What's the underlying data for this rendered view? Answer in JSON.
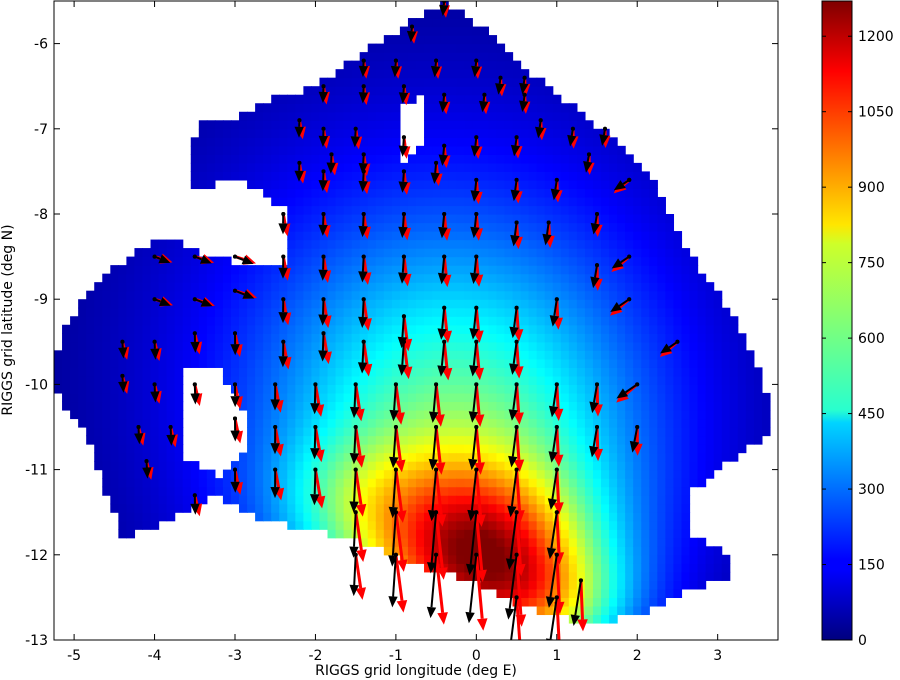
{
  "chart_data": {
    "type": "heatmap",
    "title": "",
    "xlabel": "RIGGS grid longitude (deg E)",
    "ylabel": "RIGGS grid latitude (deg N)",
    "xlim": [
      -5.25,
      3.75
    ],
    "ylim": [
      -13,
      -5.5
    ],
    "xticks": [
      -5,
      -4,
      -3,
      -2,
      -1,
      0,
      1,
      2,
      3
    ],
    "yticks": [
      -13,
      -12,
      -11,
      -10,
      -9,
      -8,
      -7,
      -6
    ],
    "colorbar": {
      "range": [
        0,
        1270
      ],
      "ticks": [
        0,
        150,
        300,
        450,
        600,
        750,
        900,
        1050,
        1200
      ],
      "colormap": "jet"
    },
    "field_note": "",
    "vector_series": [
      {
        "color": "#ff0000"
      },
      {
        "color": "#000000"
      }
    ],
    "vectors": [
      {
        "x": -0.4,
        "y": -5.5,
        "v": 1
      },
      {
        "x": -0.8,
        "y": -5.8,
        "v": 1
      },
      {
        "x": -1.4,
        "y": -6.2,
        "v": 1
      },
      {
        "x": -1.0,
        "y": -6.2,
        "v": 1
      },
      {
        "x": -0.5,
        "y": -6.2,
        "v": 1
      },
      {
        "x": 0.0,
        "y": -6.2,
        "v": 1
      },
      {
        "x": 0.3,
        "y": -6.4,
        "v": 1
      },
      {
        "x": 0.6,
        "y": -6.4,
        "v": 1
      },
      {
        "x": -1.9,
        "y": -6.5,
        "v": 1
      },
      {
        "x": -1.4,
        "y": -6.5,
        "v": 1
      },
      {
        "x": -0.9,
        "y": -6.5,
        "v": 1
      },
      {
        "x": -0.4,
        "y": -6.6,
        "v": 1
      },
      {
        "x": 0.1,
        "y": -6.6,
        "v": 1
      },
      {
        "x": 0.6,
        "y": -6.6,
        "v": 1
      },
      {
        "x": 0.8,
        "y": -6.9,
        "v": 1
      },
      {
        "x": 1.2,
        "y": -7.0,
        "v": 1
      },
      {
        "x": 1.6,
        "y": -7.0,
        "v": 1
      },
      {
        "x": -2.2,
        "y": -6.9,
        "v": 1
      },
      {
        "x": -1.9,
        "y": -7.0,
        "v": 1
      },
      {
        "x": -1.5,
        "y": -7.0,
        "v": 1
      },
      {
        "x": -1.8,
        "y": -7.3,
        "v": 1
      },
      {
        "x": -1.4,
        "y": -7.3,
        "v": 1
      },
      {
        "x": -0.9,
        "y": -7.1,
        "v": 1
      },
      {
        "x": -0.4,
        "y": -7.2,
        "v": 1
      },
      {
        "x": 0.0,
        "y": -7.1,
        "v": 1
      },
      {
        "x": 0.5,
        "y": -7.1,
        "v": 1
      },
      {
        "x": 1.4,
        "y": -7.3,
        "v": 1
      },
      {
        "x": 1.9,
        "y": -7.6,
        "v": 1
      },
      {
        "x": -2.2,
        "y": -7.4,
        "v": 1
      },
      {
        "x": -1.9,
        "y": -7.5,
        "v": 1
      },
      {
        "x": -1.4,
        "y": -7.5,
        "v": 1
      },
      {
        "x": -0.9,
        "y": -7.5,
        "v": 1
      },
      {
        "x": -0.5,
        "y": -7.4,
        "v": 1
      },
      {
        "x": 0.0,
        "y": -7.6,
        "v": 1
      },
      {
        "x": 0.5,
        "y": -7.6,
        "v": 1
      },
      {
        "x": 1.0,
        "y": -7.6,
        "v": 1
      },
      {
        "x": 1.9,
        "y": -7.6,
        "v": 1
      },
      {
        "x": -2.4,
        "y": -8.0,
        "v": 1
      },
      {
        "x": -1.9,
        "y": -8.0,
        "v": 1
      },
      {
        "x": -1.4,
        "y": -8.0,
        "v": 1
      },
      {
        "x": -0.9,
        "y": -8.0,
        "v": 1
      },
      {
        "x": -0.4,
        "y": -8.0,
        "v": 1
      },
      {
        "x": 0.0,
        "y": -8.0,
        "v": 1
      },
      {
        "x": 0.5,
        "y": -8.1,
        "v": 1
      },
      {
        "x": 0.9,
        "y": -8.1,
        "v": 1
      },
      {
        "x": 1.5,
        "y": -8.0,
        "v": 1
      },
      {
        "x": -4.0,
        "y": -8.5,
        "v": 1
      },
      {
        "x": -3.5,
        "y": -8.5,
        "v": 1
      },
      {
        "x": -3.0,
        "y": -8.5,
        "v": 1
      },
      {
        "x": -2.4,
        "y": -8.5,
        "v": 1
      },
      {
        "x": -1.9,
        "y": -8.5,
        "v": 1
      },
      {
        "x": -1.4,
        "y": -8.5,
        "v": 1
      },
      {
        "x": -0.9,
        "y": -8.5,
        "v": 1
      },
      {
        "x": -0.4,
        "y": -8.5,
        "v": 1
      },
      {
        "x": 0.0,
        "y": -8.5,
        "v": 1
      },
      {
        "x": 1.5,
        "y": -8.6,
        "v": 1
      },
      {
        "x": 1.9,
        "y": -8.5,
        "v": 1
      },
      {
        "x": -4.0,
        "y": -9.0,
        "v": 1
      },
      {
        "x": -3.5,
        "y": -9.0,
        "v": 1
      },
      {
        "x": -3.0,
        "y": -8.9,
        "v": 1
      },
      {
        "x": -2.4,
        "y": -9.0,
        "v": 1
      },
      {
        "x": -1.9,
        "y": -9.0,
        "v": 1
      },
      {
        "x": -1.4,
        "y": -9.0,
        "v": 1
      },
      {
        "x": -0.9,
        "y": -9.2,
        "v": 1
      },
      {
        "x": -0.4,
        "y": -9.1,
        "v": 1
      },
      {
        "x": 0.0,
        "y": -9.1,
        "v": 1
      },
      {
        "x": 0.5,
        "y": -9.1,
        "v": 1
      },
      {
        "x": 1.0,
        "y": -9.0,
        "v": 1
      },
      {
        "x": 1.9,
        "y": -9.0,
        "v": 1
      },
      {
        "x": -4.4,
        "y": -9.5,
        "v": 1
      },
      {
        "x": -4.0,
        "y": -9.5,
        "v": 1
      },
      {
        "x": -3.5,
        "y": -9.4,
        "v": 1
      },
      {
        "x": -3.0,
        "y": -9.4,
        "v": 1
      },
      {
        "x": -2.4,
        "y": -9.5,
        "v": 1
      },
      {
        "x": -1.9,
        "y": -9.4,
        "v": 1
      },
      {
        "x": -1.4,
        "y": -9.5,
        "v": 1
      },
      {
        "x": -0.9,
        "y": -9.5,
        "v": 1
      },
      {
        "x": -0.4,
        "y": -9.5,
        "v": 1
      },
      {
        "x": 0.0,
        "y": -9.5,
        "v": 1
      },
      {
        "x": 0.5,
        "y": -9.5,
        "v": 1
      },
      {
        "x": 2.5,
        "y": -9.5,
        "v": 1
      },
      {
        "x": -4.4,
        "y": -9.9,
        "v": 1
      },
      {
        "x": -4.0,
        "y": -10.0,
        "v": 1
      },
      {
        "x": -3.5,
        "y": -10.0,
        "v": 1
      },
      {
        "x": -3.0,
        "y": -10.0,
        "v": 1
      },
      {
        "x": -2.5,
        "y": -10.0,
        "v": 1
      },
      {
        "x": -2.0,
        "y": -10.0,
        "v": 1
      },
      {
        "x": -1.5,
        "y": -10.0,
        "v": 1
      },
      {
        "x": -1.0,
        "y": -10.0,
        "v": 1
      },
      {
        "x": -0.5,
        "y": -10.0,
        "v": 1
      },
      {
        "x": 0.0,
        "y": -10.0,
        "v": 1
      },
      {
        "x": 0.5,
        "y": -10.0,
        "v": 1
      },
      {
        "x": 1.0,
        "y": -10.0,
        "v": 1
      },
      {
        "x": 1.5,
        "y": -10.0,
        "v": 1
      },
      {
        "x": 2.0,
        "y": -10.0,
        "v": 1
      },
      {
        "x": -4.2,
        "y": -10.5,
        "v": 1
      },
      {
        "x": -3.8,
        "y": -10.5,
        "v": 1
      },
      {
        "x": -3.0,
        "y": -10.4,
        "v": 1
      },
      {
        "x": -2.5,
        "y": -10.5,
        "v": 1
      },
      {
        "x": -2.0,
        "y": -10.5,
        "v": 1
      },
      {
        "x": -1.5,
        "y": -10.5,
        "v": 1
      },
      {
        "x": -1.0,
        "y": -10.5,
        "v": 1
      },
      {
        "x": -0.5,
        "y": -10.5,
        "v": 1
      },
      {
        "x": 0.0,
        "y": -10.5,
        "v": 1
      },
      {
        "x": 0.5,
        "y": -10.5,
        "v": 1
      },
      {
        "x": 1.0,
        "y": -10.5,
        "v": 1
      },
      {
        "x": 1.5,
        "y": -10.5,
        "v": 1
      },
      {
        "x": 2.0,
        "y": -10.5,
        "v": 1
      },
      {
        "x": -4.1,
        "y": -10.9,
        "v": 1
      },
      {
        "x": -3.5,
        "y": -11.3,
        "v": 1
      },
      {
        "x": -3.0,
        "y": -11.0,
        "v": 1
      },
      {
        "x": -2.5,
        "y": -11.0,
        "v": 1
      },
      {
        "x": -2.0,
        "y": -11.0,
        "v": 1
      },
      {
        "x": -1.5,
        "y": -11.0,
        "v": 1
      },
      {
        "x": -1.0,
        "y": -11.0,
        "v": 1
      },
      {
        "x": -0.5,
        "y": -11.0,
        "v": 1
      },
      {
        "x": 0.0,
        "y": -11.0,
        "v": 1
      },
      {
        "x": 0.5,
        "y": -11.0,
        "v": 1
      },
      {
        "x": 1.0,
        "y": -11.0,
        "v": 1
      },
      {
        "x": -1.5,
        "y": -11.5,
        "v": 1
      },
      {
        "x": -1.0,
        "y": -11.5,
        "v": 1
      },
      {
        "x": -0.5,
        "y": -11.5,
        "v": 1
      },
      {
        "x": 0.0,
        "y": -11.5,
        "v": 1
      },
      {
        "x": 0.5,
        "y": -11.5,
        "v": 1
      },
      {
        "x": 1.0,
        "y": -11.5,
        "v": 1
      },
      {
        "x": -1.5,
        "y": -12.0,
        "v": 1
      },
      {
        "x": -1.0,
        "y": -12.0,
        "v": 1
      },
      {
        "x": -0.5,
        "y": -12.0,
        "v": 1
      },
      {
        "x": 0.0,
        "y": -12.0,
        "v": 1
      },
      {
        "x": 0.5,
        "y": -12.0,
        "v": 1
      },
      {
        "x": 1.0,
        "y": -12.0,
        "v": 1
      },
      {
        "x": 0.5,
        "y": -12.5,
        "v": 1
      },
      {
        "x": 1.0,
        "y": -12.5,
        "v": 1
      },
      {
        "x": 1.3,
        "y": -12.3,
        "v": 1
      }
    ]
  }
}
